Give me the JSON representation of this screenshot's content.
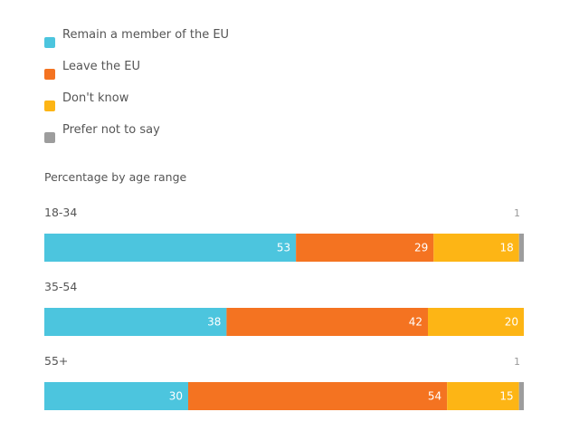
{
  "chart_data": {
    "type": "bar",
    "orientation": "horizontal-stacked",
    "subtitle": "Percentage by age range",
    "categories": [
      "18-34",
      "35-54",
      "55+"
    ],
    "series": [
      {
        "name": "Remain a member of the EU",
        "color": "#4CC5DE",
        "values": [
          53,
          38,
          30
        ]
      },
      {
        "name": "Leave the EU",
        "color": "#F47321",
        "values": [
          29,
          42,
          54
        ]
      },
      {
        "name": "Don't know",
        "color": "#FDB515",
        "values": [
          18,
          20,
          15
        ]
      },
      {
        "name": "Prefer not to say",
        "color": "#9D9D9D",
        "values": [
          1,
          0,
          1
        ]
      }
    ],
    "outside_labels": [
      "1",
      "",
      "1"
    ],
    "legend_position": "top-left",
    "grid": false
  }
}
